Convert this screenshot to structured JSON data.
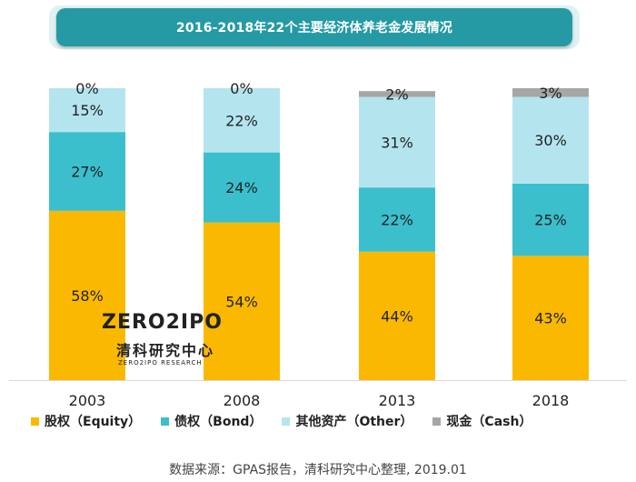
{
  "title": "2016-2018年22个主要经济体养老金发展情况",
  "chart_data": {
    "type": "bar",
    "stacked": true,
    "categories": [
      "2003",
      "2008",
      "2013",
      "2018"
    ],
    "series": [
      {
        "name": "股权（Equity）",
        "color": "#fbb800",
        "values": [
          58,
          54,
          44,
          43
        ],
        "labels": [
          "58%",
          "54%",
          "44%",
          "43%"
        ]
      },
      {
        "name": "债权（Bond）",
        "color": "#3bbfcd",
        "values": [
          27,
          24,
          22,
          25
        ],
        "labels": [
          "27%",
          "24%",
          "22%",
          "25%"
        ]
      },
      {
        "name": "其他资产（Other）",
        "color": "#b4e5ef",
        "values": [
          15,
          22,
          31,
          30
        ],
        "labels": [
          "15%",
          "22%",
          "31%",
          "30%"
        ]
      },
      {
        "name": "现金（Cash）",
        "color": "#a6a6a6",
        "values": [
          0,
          0,
          2,
          3
        ],
        "labels": [
          "0%",
          "0%",
          "2%",
          "3%"
        ]
      }
    ],
    "ylim": [
      0,
      100
    ],
    "grid": false,
    "legend_position": "bottom"
  },
  "watermark": {
    "logo": "ZERO2IPO",
    "cn": "清科研究中心",
    "en": "ZERO2IPO RESEARCH"
  },
  "source": "数据来源：GPAS报告，清科研究中心整理, 2019.01"
}
